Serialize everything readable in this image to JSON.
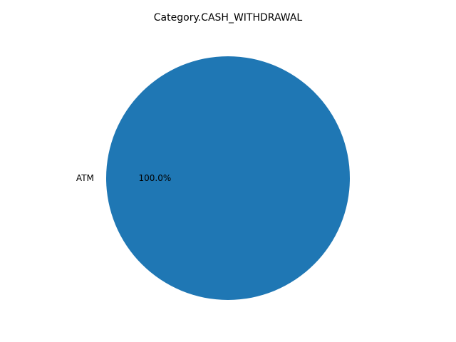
{
  "chart_data": {
    "type": "pie",
    "title": "Category.CASH_WITHDRAWAL",
    "labels": [
      "ATM"
    ],
    "values": [
      100.0
    ],
    "percent_labels": [
      "100.0%"
    ],
    "colors": [
      "#1f77b4"
    ],
    "legend": "none"
  }
}
